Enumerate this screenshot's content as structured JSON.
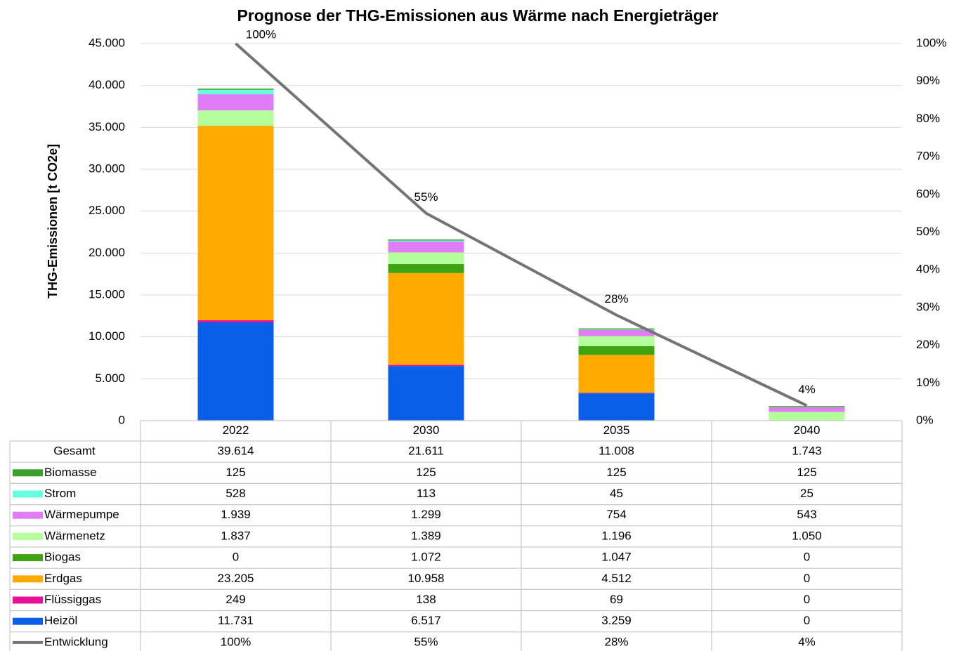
{
  "chart_data": {
    "type": "bar",
    "stacked": true,
    "title": "Prognose der THG-Emissionen aus Wärme nach Energieträger",
    "ylabel": "THG-Emissionen [t CO2e]",
    "categories": [
      "2022",
      "2030",
      "2035",
      "2040"
    ],
    "series": [
      {
        "name": "Heizöl",
        "color": "#0a5ee8",
        "values": [
          11731,
          6517,
          3259,
          0
        ],
        "value_labels": [
          "11.731",
          "6.517",
          "3.259",
          "0"
        ]
      },
      {
        "name": "Flüssiggas",
        "color": "#e6109b",
        "values": [
          249,
          138,
          69,
          0
        ],
        "value_labels": [
          "249",
          "138",
          "69",
          "0"
        ]
      },
      {
        "name": "Erdgas",
        "color": "#ffaa00",
        "values": [
          23205,
          10958,
          4512,
          0
        ],
        "value_labels": [
          "23.205",
          "10.958",
          "4.512",
          "0"
        ]
      },
      {
        "name": "Biogas",
        "color": "#3ea414",
        "values": [
          0,
          1072,
          1047,
          0
        ],
        "value_labels": [
          "0",
          "1.072",
          "1.047",
          "0"
        ]
      },
      {
        "name": "Wärmenetz",
        "color": "#b3ff99",
        "values": [
          1837,
          1389,
          1196,
          1050
        ],
        "value_labels": [
          "1.837",
          "1.389",
          "1.196",
          "1.050"
        ]
      },
      {
        "name": "Wärmepumpe",
        "color": "#e07cf5",
        "values": [
          1939,
          1299,
          754,
          543
        ],
        "value_labels": [
          "1.939",
          "1.299",
          "754",
          "543"
        ]
      },
      {
        "name": "Strom",
        "color": "#66ffe0",
        "values": [
          528,
          113,
          45,
          25
        ],
        "value_labels": [
          "528",
          "113",
          "45",
          "25"
        ]
      },
      {
        "name": "Biomasse",
        "color": "#3aa02a",
        "values": [
          125,
          125,
          125,
          125
        ],
        "value_labels": [
          "125",
          "125",
          "125",
          "125"
        ]
      }
    ],
    "total": {
      "name": "Gesamt",
      "values": [
        39614,
        21611,
        11008,
        1743
      ],
      "value_labels": [
        "39.614",
        "21.611",
        "11.008",
        "1.743"
      ]
    },
    "line": {
      "name": "Entwicklung",
      "type": "line",
      "axis": "y2",
      "color": "#747474",
      "values": [
        100,
        55,
        28,
        4
      ],
      "value_labels": [
        "100%",
        "55%",
        "28%",
        "4%"
      ]
    },
    "ylim": [
      0,
      45000
    ],
    "yticks": [
      0,
      {
        "value": 5000,
        "label": "5.000"
      },
      {
        "value": 10000,
        "label": "10.000"
      },
      {
        "value": 15000,
        "label": "15.000"
      },
      {
        "value": 20000,
        "label": "20.000"
      },
      {
        "value": 25000,
        "label": "25.000"
      },
      {
        "value": 30000,
        "label": "30.000"
      },
      {
        "value": 35000,
        "label": "35.000"
      },
      {
        "value": 40000,
        "label": "40.000"
      },
      {
        "value": 45000,
        "label": "45.000"
      }
    ],
    "y2lim": [
      0,
      100
    ],
    "y2ticks": [
      {
        "value": 0,
        "label": "0%"
      },
      {
        "value": 10,
        "label": "10%"
      },
      {
        "value": 20,
        "label": "20%"
      },
      {
        "value": 30,
        "label": "30%"
      },
      {
        "value": 40,
        "label": "40%"
      },
      {
        "value": 50,
        "label": "50%"
      },
      {
        "value": 60,
        "label": "60%"
      },
      {
        "value": 70,
        "label": "70%"
      },
      {
        "value": 80,
        "label": "80%"
      },
      {
        "value": 90,
        "label": "90%"
      },
      {
        "value": 100,
        "label": "100%"
      }
    ],
    "grid": true
  }
}
